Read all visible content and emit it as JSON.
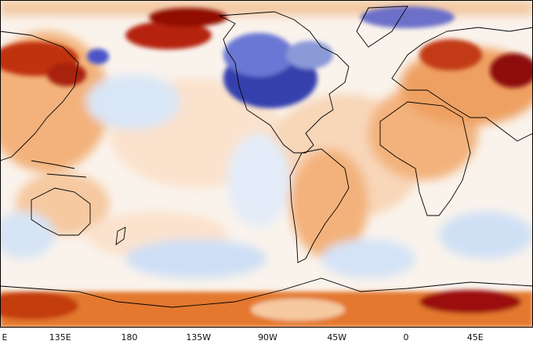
{
  "map": {
    "projection": "plate-carree",
    "center_longitude": 0,
    "colormap": "diverging blue-white-red",
    "colors": {
      "strong_cold": "#1f2a8c",
      "cold": "#4a55c7",
      "cool": "#a8c6ee",
      "neutral": "#f8f4ef",
      "warm": "#f6c9a0",
      "hot": "#e07a33",
      "very_hot": "#b8260c",
      "extreme_hot": "#8a0a06",
      "coastline": "#000000"
    },
    "x_axis": {
      "ticks": [
        {
          "label": "E",
          "lon": -180
        },
        {
          "label": "135E",
          "lon": 135
        },
        {
          "label": "180",
          "lon": 180
        },
        {
          "label": "135W",
          "lon": -135
        },
        {
          "label": "90W",
          "lon": -90
        },
        {
          "label": "45W",
          "lon": -45
        },
        {
          "label": "0",
          "lon": 0
        },
        {
          "label": "45E",
          "lon": 45
        }
      ]
    }
  }
}
